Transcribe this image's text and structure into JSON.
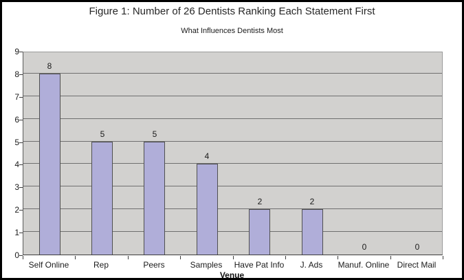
{
  "figure": {
    "title": "Figure 1: Number of 26 Dentists Ranking Each Statement First",
    "subtitle": "What Influences Dentists Most"
  },
  "chart_data": {
    "type": "bar",
    "title": "What Influences Dentists Most",
    "categories": [
      "Self Online",
      "Rep",
      "Peers",
      "Samples",
      "Have Pat Info",
      "J. Ads",
      "Manuf. Online",
      "Direct Mail"
    ],
    "values": [
      8,
      5,
      5,
      4,
      2,
      2,
      0,
      0
    ],
    "data_labels": [
      "8",
      "5",
      "5",
      "4",
      "2",
      "2",
      "0",
      "0"
    ],
    "xlabel": "Venue",
    "ylabel": "",
    "ylim": [
      0,
      9
    ],
    "y_ticks": [
      0,
      1,
      2,
      3,
      4,
      5,
      6,
      7,
      8,
      9
    ],
    "grid": "horizontal",
    "legend": "none",
    "colors": {
      "bar_fill": "#b0aed9",
      "bar_border": "#4f4f4f",
      "plot_bg": "#d2d1cf",
      "gridline": "#6f6f6f",
      "axis": "#3c3c3c",
      "text": "#1a1a1a",
      "frame": "#000000",
      "background": "#ffffff"
    }
  }
}
